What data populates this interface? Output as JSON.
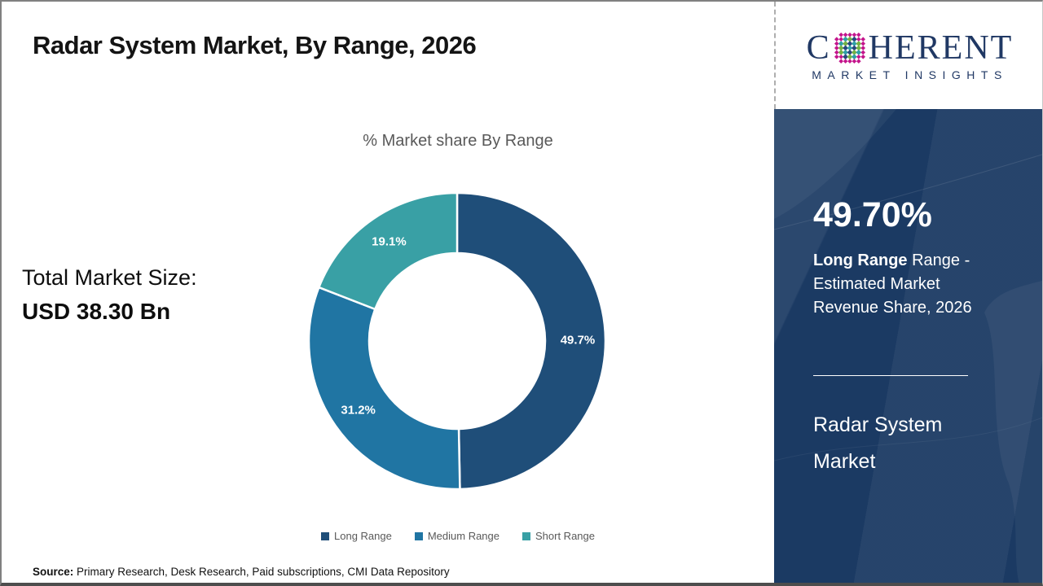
{
  "page": {
    "title": "Radar System Market, By Range, 2026",
    "source_label": "Source:",
    "source_text": " Primary Research, Desk Research, Paid subscriptions, CMI Data Repository"
  },
  "left_panel": {
    "total_label": "Total Market Size:",
    "total_value": "USD 38.30 Bn"
  },
  "chart_data": {
    "type": "pie",
    "subtype": "donut",
    "title": "% Market share By Range",
    "categories": [
      "Long Range",
      "Medium Range",
      "Short Range"
    ],
    "values": [
      49.7,
      31.2,
      19.1
    ],
    "slice_labels": [
      "49.7%",
      "31.2%",
      "19.1%"
    ],
    "colors": [
      "#1F4E79",
      "#2075A3",
      "#39A0A5"
    ],
    "start_angle_deg": 0,
    "direction": "clockwise",
    "legend_position": "bottom"
  },
  "sidebar": {
    "stat_value": "49.70%",
    "stat_desc_bold": "Long Range",
    "stat_desc_rest": " Range - Estimated Market Revenue Share, 2026",
    "product_title": "Radar System Market",
    "background_color": "#1B3A63"
  },
  "logo": {
    "brand_prefix": "C",
    "brand_suffix": "HERENT",
    "brand_sub": "MARKET INSIGHTS",
    "brand_color": "#203864",
    "globe_dot_colors": [
      "#2F9FA6",
      "#74B043",
      "#27477E",
      "#C4168C"
    ]
  }
}
